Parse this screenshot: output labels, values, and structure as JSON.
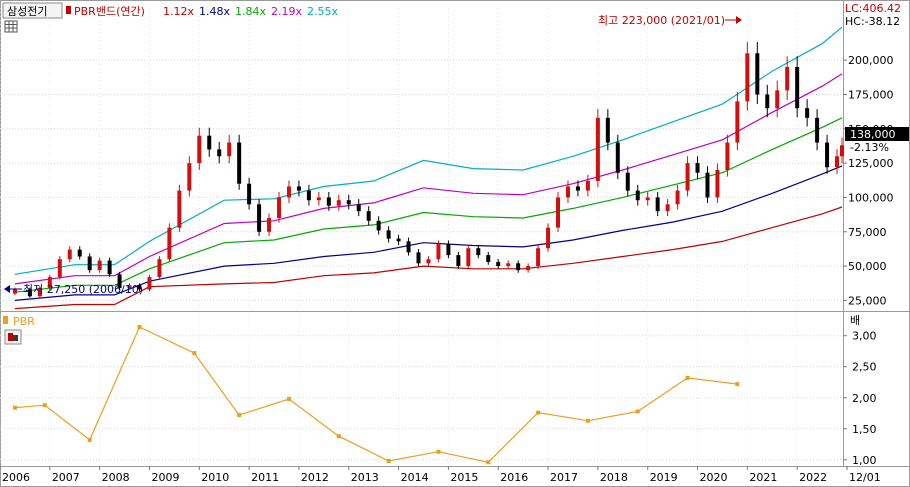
{
  "header": {
    "stock_name": "삼성전기",
    "indicator_label": "PBR밴드(연간)",
    "multipliers": [
      {
        "label": "1.12x",
        "color": "#c00000"
      },
      {
        "label": "1.48x",
        "color": "#00008b"
      },
      {
        "label": "1.84x",
        "color": "#00aa00"
      },
      {
        "label": "2.19x",
        "color": "#c000c0"
      },
      {
        "label": "2.55x",
        "color": "#00b0c0"
      }
    ]
  },
  "price_panel": {
    "lc_label": "LC:406.42",
    "hc_label": "HC:-38.12",
    "current_price_label": "138,000",
    "change_label": "-2.13%",
    "high_annotation": "최고 223,000 (2021/01)",
    "low_annotation": "최저 27,250 (2006/10)"
  },
  "pbr_panel": {
    "title": "PBR",
    "unit_label": "배"
  },
  "x_axis": {
    "labels": [
      "2006",
      "2007",
      "2008",
      "2009",
      "2010",
      "2011",
      "2012",
      "2013",
      "2014",
      "2015",
      "2016",
      "2017",
      "2018",
      "2019",
      "2020",
      "2021",
      "2022",
      "12/01"
    ]
  },
  "chart_data": [
    {
      "type": "candlestick",
      "title": "PBR밴드(연간)",
      "ylim": [
        18000,
        238000
      ],
      "y_ticks": [
        25000,
        50000,
        75000,
        100000,
        125000,
        150000,
        175000,
        200000
      ],
      "y_tick_labels": [
        "25,000",
        "50,000",
        "75,000",
        "100,000",
        "125,000",
        "150,000",
        "175,000",
        "200,000"
      ],
      "x_range": [
        2006.0,
        2022.92
      ],
      "colors": {
        "up": "#d01010",
        "down": "#000000"
      },
      "series": [
        {
          "name": "1.12x",
          "color": "#c00000",
          "x": [
            2006.3,
            2007.5,
            2008.3,
            2009.0,
            2010.5,
            2011.5,
            2012.5,
            2013.5,
            2014.5,
            2015.5,
            2016.5,
            2017.5,
            2018.5,
            2019.5,
            2020.5,
            2021.5,
            2022.5,
            2022.9
          ],
          "values": [
            19000,
            22000,
            22000,
            35000,
            37000,
            38000,
            43000,
            45000,
            50000,
            48000,
            48000,
            52000,
            57000,
            62000,
            68000,
            78000,
            88000,
            93000
          ]
        },
        {
          "name": "1.48x",
          "color": "#00008b",
          "x": [
            2006.3,
            2007.5,
            2008.3,
            2009.0,
            2010.5,
            2011.5,
            2012.5,
            2013.5,
            2014.5,
            2015.5,
            2016.5,
            2017.5,
            2018.5,
            2019.5,
            2020.5,
            2021.5,
            2022.5,
            2022.9
          ],
          "values": [
            25000,
            29000,
            29000,
            39000,
            50000,
            52000,
            57000,
            60000,
            67000,
            65000,
            64000,
            69000,
            76000,
            82000,
            90000,
            103000,
            117000,
            123000
          ]
        },
        {
          "name": "1.84x",
          "color": "#00aa00",
          "x": [
            2006.3,
            2007.5,
            2008.3,
            2009.0,
            2010.5,
            2011.5,
            2012.5,
            2013.5,
            2014.5,
            2015.5,
            2016.5,
            2017.5,
            2018.5,
            2019.5,
            2020.5,
            2021.5,
            2022.5,
            2022.9
          ],
          "values": [
            31000,
            36000,
            36000,
            48000,
            67000,
            69000,
            77000,
            80000,
            89000,
            86000,
            85000,
            92000,
            100000,
            109000,
            118000,
            135000,
            151000,
            158000
          ]
        },
        {
          "name": "2.19x",
          "color": "#c000c0",
          "x": [
            2006.3,
            2007.5,
            2008.3,
            2009.0,
            2010.5,
            2011.5,
            2012.5,
            2013.5,
            2014.5,
            2015.5,
            2016.5,
            2017.5,
            2018.5,
            2019.5,
            2020.5,
            2021.5,
            2022.5,
            2022.9
          ],
          "values": [
            37000,
            43000,
            43000,
            57000,
            81000,
            83000,
            92000,
            96000,
            107000,
            103000,
            102000,
            110000,
            120000,
            131000,
            142000,
            162000,
            181000,
            190000
          ]
        },
        {
          "name": "2.55x",
          "color": "#00b0c0",
          "x": [
            2006.3,
            2007.5,
            2008.3,
            2009.0,
            2010.5,
            2011.5,
            2012.5,
            2013.5,
            2014.5,
            2015.5,
            2016.5,
            2017.5,
            2018.5,
            2019.5,
            2020.5,
            2021.5,
            2022.5,
            2022.9
          ],
          "values": [
            44000,
            51000,
            51000,
            68000,
            98000,
            99000,
            108000,
            112000,
            127000,
            121000,
            120000,
            130000,
            142000,
            155000,
            168000,
            192000,
            212000,
            224000
          ]
        }
      ],
      "price": {
        "x": [
          2006.0,
          2006.3,
          2006.6,
          2006.8,
          2007.0,
          2007.2,
          2007.4,
          2007.6,
          2007.8,
          2008.0,
          2008.2,
          2008.4,
          2008.6,
          2008.8,
          2009.0,
          2009.2,
          2009.4,
          2009.6,
          2009.8,
          2010.0,
          2010.2,
          2010.4,
          2010.6,
          2010.8,
          2011.0,
          2011.2,
          2011.4,
          2011.6,
          2011.8,
          2012.0,
          2012.2,
          2012.4,
          2012.6,
          2012.8,
          2013.0,
          2013.2,
          2013.4,
          2013.6,
          2013.8,
          2014.0,
          2014.2,
          2014.4,
          2014.6,
          2014.8,
          2015.0,
          2015.2,
          2015.4,
          2015.6,
          2015.8,
          2016.0,
          2016.2,
          2016.4,
          2016.6,
          2016.8,
          2017.0,
          2017.2,
          2017.4,
          2017.6,
          2017.8,
          2018.0,
          2018.2,
          2018.4,
          2018.6,
          2018.8,
          2019.0,
          2019.2,
          2019.4,
          2019.6,
          2019.8,
          2020.0,
          2020.2,
          2020.4,
          2020.6,
          2020.8,
          2021.0,
          2021.2,
          2021.4,
          2021.6,
          2021.8,
          2022.0,
          2022.2,
          2022.4,
          2022.6,
          2022.8,
          2022.9
        ],
        "values": [
          30000,
          33000,
          28000,
          34000,
          42000,
          55000,
          62000,
          57000,
          47000,
          54000,
          44000,
          34000,
          36000,
          33000,
          42000,
          55000,
          78000,
          105000,
          125000,
          145000,
          135000,
          130000,
          140000,
          110000,
          95000,
          75000,
          85000,
          100000,
          108000,
          105000,
          98000,
          100000,
          94000,
          98000,
          95000,
          90000,
          83000,
          76000,
          70000,
          68000,
          60000,
          52000,
          55000,
          66000,
          58000,
          50000,
          63000,
          58000,
          53000,
          50000,
          52000,
          47000,
          50000,
          63000,
          78000,
          100000,
          108000,
          105000,
          112000,
          158000,
          140000,
          118000,
          105000,
          98000,
          100000,
          90000,
          95000,
          105000,
          125000,
          118000,
          100000,
          120000,
          140000,
          170000,
          205000,
          175000,
          165000,
          178000,
          195000,
          165000,
          158000,
          140000,
          122000,
          130000,
          138000
        ]
      }
    },
    {
      "type": "line",
      "title": "PBR",
      "ylabel": "배",
      "ylim": [
        0.9,
        3.35
      ],
      "y_ticks": [
        1.0,
        1.5,
        2.0,
        2.5,
        3.0
      ],
      "y_tick_labels": [
        "1,00",
        "1,50",
        "2,00",
        "2,50",
        "3,00"
      ],
      "x_range": [
        2006.0,
        2022.92
      ],
      "series": [
        {
          "name": "PBR",
          "color": "#e8a020",
          "x": [
            2006.3,
            2006.9,
            2007.8,
            2008.8,
            2009.9,
            2010.8,
            2011.8,
            2012.8,
            2013.8,
            2014.8,
            2015.8,
            2016.8,
            2017.8,
            2018.8,
            2019.8,
            2020.8
          ],
          "values": [
            1.84,
            1.88,
            1.32,
            3.14,
            2.72,
            1.72,
            1.98,
            1.38,
            0.98,
            1.13,
            0.96,
            1.76,
            1.63,
            1.78,
            2.32,
            2.22
          ]
        }
      ]
    }
  ]
}
